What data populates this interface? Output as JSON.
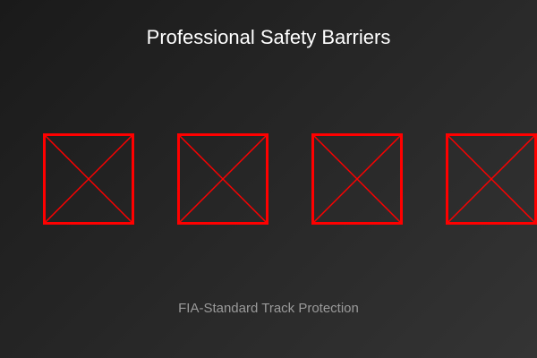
{
  "title": "Professional Safety Barriers",
  "subtitle": "FIA-Standard Track Protection",
  "barrier_count": 4,
  "barrier_color": "#ff0000",
  "barrier_icon": "crossed-box-icon"
}
